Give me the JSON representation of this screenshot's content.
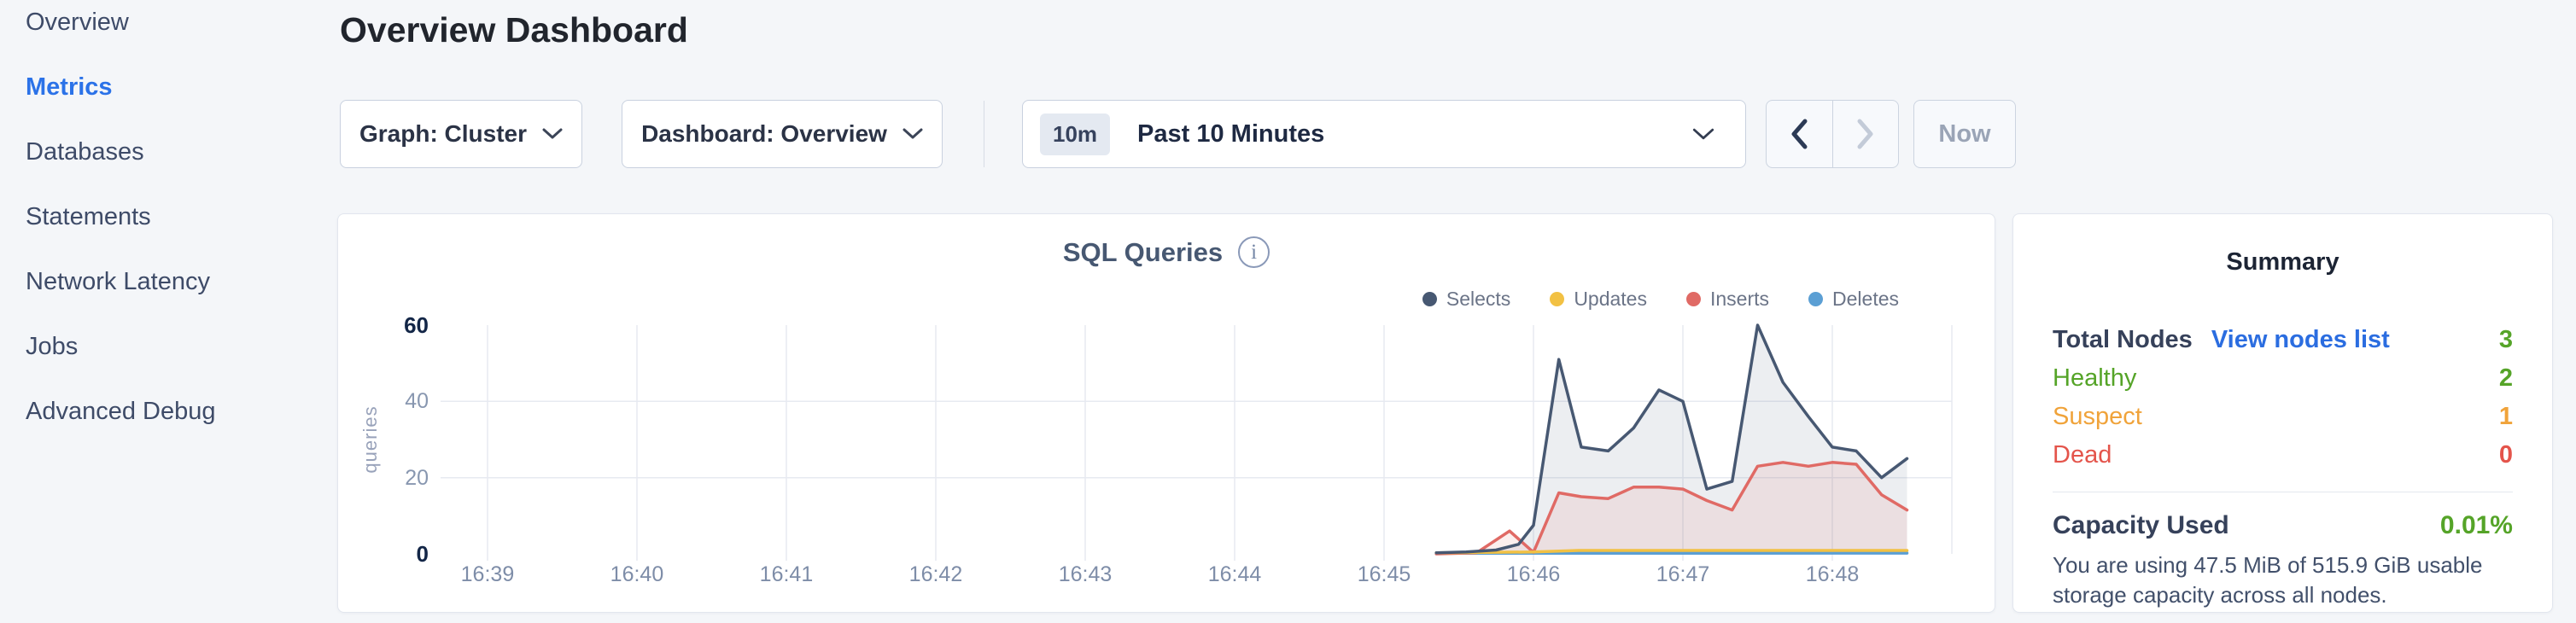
{
  "header": {
    "title": "Overview Dashboard"
  },
  "sidebar": {
    "items": [
      {
        "label": "Overview",
        "active": false
      },
      {
        "label": "Metrics",
        "active": true
      },
      {
        "label": "Databases",
        "active": false
      },
      {
        "label": "Statements",
        "active": false
      },
      {
        "label": "Network Latency",
        "active": false
      },
      {
        "label": "Jobs",
        "active": false
      },
      {
        "label": "Advanced Debug",
        "active": false
      }
    ]
  },
  "toolbar": {
    "graph_dropdown_label": "Graph: Cluster",
    "dashboard_dropdown_label": "Dashboard: Overview",
    "time_badge": "10m",
    "time_range_label": "Past 10 Minutes",
    "now_label": "Now"
  },
  "icons": {
    "dropdown_chevron": "chevron-down",
    "prev": "chevron-left",
    "next": "chevron-right",
    "info_glyph": "i"
  },
  "chart_data": {
    "type": "line",
    "title": "SQL Queries",
    "ylabel": "queries",
    "x_description": "time of day, decimal minutes after 16:00",
    "x_domain": [
      38.686,
      48.8
    ],
    "y_domain": [
      0,
      60
    ],
    "y_ticks": [
      0,
      20,
      40,
      60
    ],
    "x_ticks": [
      {
        "label": "16:39",
        "t": 39
      },
      {
        "label": "16:40",
        "t": 40
      },
      {
        "label": "16:41",
        "t": 41
      },
      {
        "label": "16:42",
        "t": 42
      },
      {
        "label": "16:43",
        "t": 43
      },
      {
        "label": "16:44",
        "t": 44
      },
      {
        "label": "16:45",
        "t": 45
      },
      {
        "label": "16:46",
        "t": 46
      },
      {
        "label": "16:47",
        "t": 47
      },
      {
        "label": "16:48",
        "t": 48
      }
    ],
    "grid": true,
    "legend_position": "top-right",
    "series": [
      {
        "name": "Selects",
        "color": "#475872",
        "fill": "rgba(71,88,114,0.10)",
        "points": [
          [
            45.35,
            0.3
          ],
          [
            45.55,
            0.5
          ],
          [
            45.75,
            1
          ],
          [
            45.9,
            2.5
          ],
          [
            46.0,
            7.5
          ],
          [
            46.17,
            51
          ],
          [
            46.32,
            28
          ],
          [
            46.5,
            27
          ],
          [
            46.67,
            33
          ],
          [
            46.84,
            43
          ],
          [
            47.0,
            40
          ],
          [
            47.16,
            17
          ],
          [
            47.33,
            19
          ],
          [
            47.5,
            60
          ],
          [
            47.67,
            45
          ],
          [
            47.84,
            36
          ],
          [
            48.0,
            28
          ],
          [
            48.16,
            27
          ],
          [
            48.33,
            20
          ],
          [
            48.5,
            25
          ]
        ]
      },
      {
        "name": "Updates",
        "color": "#f2c143",
        "fill": "rgba(242,193,67,0.12)",
        "points": [
          [
            45.35,
            0.3
          ],
          [
            46.0,
            0.5
          ],
          [
            46.3,
            0.9
          ],
          [
            47.5,
            0.9
          ],
          [
            48.5,
            0.9
          ]
        ]
      },
      {
        "name": "Inserts",
        "color": "#e06a65",
        "fill": "rgba(224,106,101,0.11)",
        "points": [
          [
            45.35,
            0
          ],
          [
            45.62,
            0.3
          ],
          [
            45.84,
            6
          ],
          [
            46.0,
            0.4
          ],
          [
            46.17,
            16
          ],
          [
            46.32,
            15
          ],
          [
            46.5,
            14.5
          ],
          [
            46.67,
            17.5
          ],
          [
            46.84,
            17.5
          ],
          [
            47.0,
            17
          ],
          [
            47.16,
            14
          ],
          [
            47.33,
            11.5
          ],
          [
            47.5,
            23
          ],
          [
            47.67,
            24
          ],
          [
            47.84,
            23
          ],
          [
            48.0,
            24
          ],
          [
            48.16,
            23.5
          ],
          [
            48.33,
            15.5
          ],
          [
            48.5,
            11.5
          ]
        ]
      },
      {
        "name": "Deletes",
        "color": "#5b9fd4",
        "fill": "rgba(91,159,212,0.10)",
        "points": [
          [
            45.35,
            0.15
          ],
          [
            46.5,
            0.15
          ],
          [
            48.5,
            0.2
          ]
        ]
      }
    ]
  },
  "summary": {
    "title": "Summary",
    "rows": [
      {
        "label": "Total Nodes",
        "link": "View nodes list",
        "value": "3"
      },
      {
        "label": "Healthy",
        "value": "2"
      },
      {
        "label": "Suspect",
        "value": "1"
      },
      {
        "label": "Dead",
        "value": "0"
      }
    ],
    "capacity": {
      "label": "Capacity Used",
      "value": "0.01%",
      "description": "You are using 47.5 MiB of 515.9 GiB usable storage capacity across all nodes."
    }
  }
}
